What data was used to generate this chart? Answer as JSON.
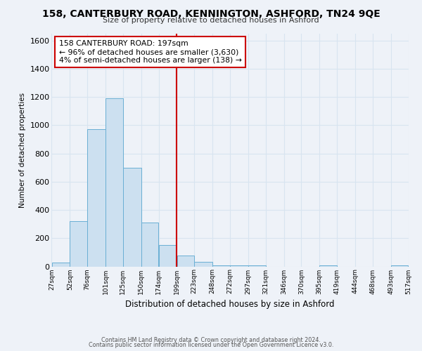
{
  "title": "158, CANTERBURY ROAD, KENNINGTON, ASHFORD, TN24 9QE",
  "subtitle": "Size of property relative to detached houses in Ashford",
  "xlabel": "Distribution of detached houses by size in Ashford",
  "ylabel": "Number of detached properties",
  "bar_color": "#cce0f0",
  "bar_edge_color": "#6aafd4",
  "background_color": "#eef2f8",
  "grid_color": "#d8e4f0",
  "vline_color": "#cc0000",
  "bin_edges": [
    27,
    52,
    76,
    101,
    125,
    150,
    174,
    199,
    223,
    248,
    272,
    297,
    321,
    346,
    370,
    395,
    419,
    444,
    468,
    493,
    517
  ],
  "bin_labels": [
    "27sqm",
    "52sqm",
    "76sqm",
    "101sqm",
    "125sqm",
    "150sqm",
    "174sqm",
    "199sqm",
    "223sqm",
    "248sqm",
    "272sqm",
    "297sqm",
    "321sqm",
    "346sqm",
    "370sqm",
    "395sqm",
    "419sqm",
    "444sqm",
    "468sqm",
    "493sqm",
    "517sqm"
  ],
  "counts": [
    25,
    320,
    970,
    1190,
    700,
    310,
    150,
    75,
    30,
    10,
    10,
    10,
    0,
    0,
    0,
    10,
    0,
    0,
    0,
    10
  ],
  "vline_x": 199,
  "ylim": [
    0,
    1650
  ],
  "yticks": [
    0,
    200,
    400,
    600,
    800,
    1000,
    1200,
    1400,
    1600
  ],
  "annotation_line1": "158 CANTERBURY ROAD: 197sqm",
  "annotation_line2": "← 96% of detached houses are smaller (3,630)",
  "annotation_line3": "4% of semi-detached houses are larger (138) →",
  "footer_line1": "Contains HM Land Registry data © Crown copyright and database right 2024.",
  "footer_line2": "Contains public sector information licensed under the Open Government Licence v3.0."
}
